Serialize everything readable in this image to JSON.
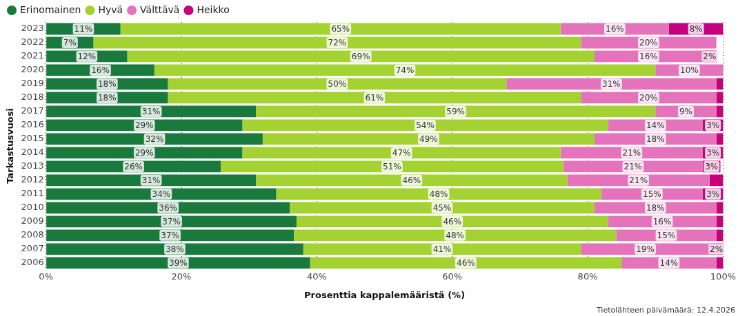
{
  "chart_data": {
    "type": "bar",
    "orientation": "horizontal",
    "stacked": true,
    "xlabel": "Prosenttia kappalemääristä (%)",
    "ylabel": "Tarkastusvuosi",
    "categories": [
      "2023",
      "2022",
      "2021",
      "2020",
      "2019",
      "2018",
      "2017",
      "2016",
      "2015",
      "2014",
      "2013",
      "2012",
      "2011",
      "2010",
      "2009",
      "2008",
      "2007",
      "2006"
    ],
    "series": [
      {
        "name": "Erinomainen",
        "color": "#1a7a3e",
        "values": [
          11,
          7,
          12,
          16,
          18,
          18,
          31,
          29,
          32,
          29,
          25.8,
          31,
          34,
          36,
          37,
          36.6,
          38,
          39
        ],
        "value_labels": [
          "11%",
          "7%",
          "12%",
          "16%",
          "18%",
          "18%",
          "31%",
          "29%",
          "32%",
          "29%",
          "26%",
          "31%",
          "34%",
          "36%",
          "37%",
          "37%",
          "38%",
          "39%"
        ]
      },
      {
        "name": "Hyvä",
        "color": "#a4d233",
        "values": [
          65,
          72,
          69,
          74,
          50,
          61,
          59,
          54,
          49,
          47,
          50.6,
          46,
          48,
          45,
          46,
          47.6,
          41,
          46
        ],
        "value_labels": [
          "65%",
          "72%",
          "69%",
          "74%",
          "50%",
          "61%",
          "59%",
          "54%",
          "49%",
          "47%",
          "51%",
          "46%",
          "48%",
          "45%",
          "46%",
          "48%",
          "41%",
          "46%"
        ]
      },
      {
        "name": "Välttävä",
        "color": "#e573bb",
        "values": [
          16,
          20,
          16,
          10,
          31,
          20,
          9,
          14,
          18,
          21,
          20.6,
          21,
          15,
          18,
          16,
          14.8,
          19,
          14
        ],
        "value_labels": [
          "16%",
          "20%",
          "16%",
          "10%",
          "31%",
          "20%",
          "9%",
          "14%",
          "18%",
          "21%",
          "21%",
          "21%",
          "15%",
          "18%",
          "16%",
          "15%",
          "19%",
          "14%"
        ]
      },
      {
        "name": "Heikko",
        "color": "#c7007d",
        "values": [
          8,
          null,
          2,
          null,
          1,
          1,
          1,
          3,
          1,
          3,
          2.6,
          2,
          3,
          1,
          1,
          1,
          2,
          1
        ],
        "value_labels": [
          "8%",
          null,
          "2%",
          null,
          null,
          null,
          null,
          "3%",
          null,
          "3%",
          "3%",
          null,
          "3%",
          null,
          null,
          null,
          "2%",
          null
        ]
      }
    ],
    "xlim": [
      0,
      100
    ],
    "xticks": [
      {
        "value": 0,
        "label": "0%"
      },
      {
        "value": 20,
        "label": "20%"
      },
      {
        "value": 40,
        "label": "40%"
      },
      {
        "value": 60,
        "label": "60%"
      },
      {
        "value": 80,
        "label": "80%"
      },
      {
        "value": 100,
        "label": "100%"
      }
    ],
    "grid": "x",
    "legend": "top left",
    "annotations": [
      "Tietolähteen päivämäärä: 12.4.2026"
    ]
  }
}
